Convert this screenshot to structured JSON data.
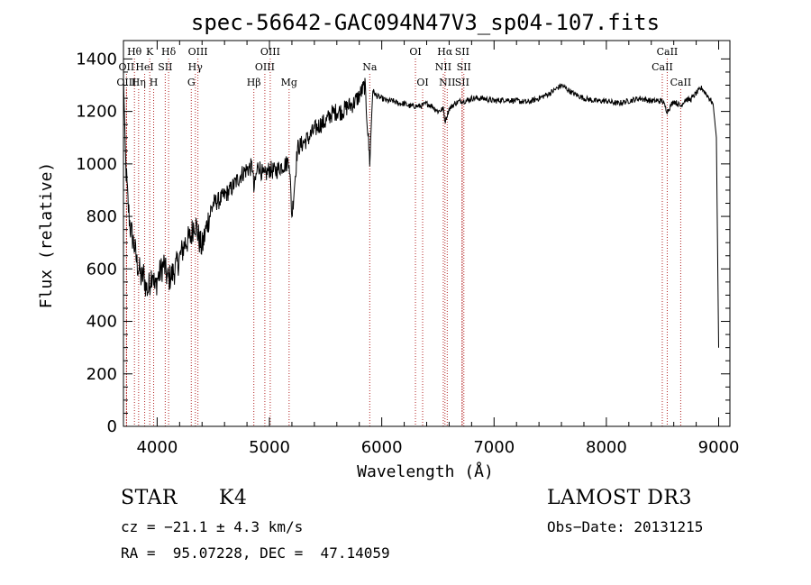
{
  "chart_data": {
    "type": "line",
    "title": "spec-56642-GAC094N47V3_sp04-107.fits",
    "xlabel": "Wavelength (Å)",
    "ylabel": "Flux (relative)",
    "xlim": [
      3700,
      9100
    ],
    "ylim": [
      0,
      1470
    ],
    "xticks": [
      4000,
      5000,
      6000,
      7000,
      8000,
      9000
    ],
    "yticks": [
      0,
      200,
      400,
      600,
      800,
      1000,
      1200,
      1400
    ],
    "x_tick_labels": [
      "4000",
      "5000",
      "6000",
      "7000",
      "8000",
      "9000"
    ],
    "y_tick_labels": [
      "0",
      "200",
      "400",
      "600",
      "800",
      "1000",
      "1200",
      "1400"
    ],
    "grid": false,
    "series": [
      {
        "name": "flux",
        "x": [
          3700,
          3720,
          3740,
          3760,
          3780,
          3800,
          3820,
          3840,
          3860,
          3880,
          3900,
          3920,
          3940,
          3960,
          3980,
          4000,
          4020,
          4040,
          4060,
          4080,
          4100,
          4150,
          4200,
          4250,
          4300,
          4330,
          4350,
          4380,
          4400,
          4450,
          4500,
          4550,
          4600,
          4650,
          4700,
          4750,
          4800,
          4850,
          4861,
          4900,
          4950,
          5000,
          5050,
          5100,
          5150,
          5175,
          5200,
          5250,
          5300,
          5350,
          5400,
          5450,
          5500,
          5550,
          5600,
          5650,
          5700,
          5750,
          5800,
          5850,
          5893,
          5920,
          5950,
          6000,
          6050,
          6100,
          6150,
          6200,
          6250,
          6300,
          6350,
          6400,
          6450,
          6500,
          6550,
          6563,
          6600,
          6650,
          6700,
          6750,
          6800,
          6900,
          7000,
          7100,
          7200,
          7300,
          7400,
          7500,
          7600,
          7700,
          7800,
          7900,
          8000,
          8100,
          8200,
          8300,
          8400,
          8500,
          8542,
          8600,
          8662,
          8700,
          8750,
          8800,
          8850,
          8900,
          8950,
          8980,
          9000
        ],
        "y": [
          1330,
          1000,
          850,
          760,
          720,
          680,
          620,
          600,
          560,
          580,
          530,
          520,
          560,
          600,
          520,
          560,
          580,
          600,
          620,
          580,
          560,
          590,
          640,
          700,
          720,
          780,
          760,
          700,
          680,
          780,
          850,
          860,
          880,
          900,
          930,
          960,
          980,
          990,
          900,
          1000,
          950,
          980,
          970,
          990,
          1000,
          1020,
          800,
          1060,
          1080,
          1100,
          1130,
          1150,
          1160,
          1190,
          1200,
          1200,
          1220,
          1230,
          1260,
          1300,
          1010,
          1280,
          1260,
          1250,
          1240,
          1240,
          1230,
          1230,
          1220,
          1220,
          1220,
          1230,
          1220,
          1200,
          1210,
          1160,
          1210,
          1230,
          1240,
          1240,
          1250,
          1250,
          1240,
          1245,
          1240,
          1235,
          1250,
          1270,
          1300,
          1270,
          1250,
          1240,
          1240,
          1230,
          1240,
          1250,
          1240,
          1240,
          1200,
          1240,
          1220,
          1245,
          1245,
          1270,
          1290,
          1260,
          1230,
          1100,
          300
        ]
      }
    ],
    "spectral_lines": [
      {
        "name": "Hθ",
        "wavelength": 3798,
        "row": 0
      },
      {
        "name": "OII",
        "wavelength": 3727,
        "row": 1
      },
      {
        "name": "OIII",
        "wavelength": 3727,
        "row": 2
      },
      {
        "name": "Hη",
        "wavelength": 3835,
        "row": 2
      },
      {
        "name": "K",
        "wavelength": 3934,
        "row": 0
      },
      {
        "name": "HeI",
        "wavelength": 3889,
        "row": 1
      },
      {
        "name": "H",
        "wavelength": 3969,
        "row": 2
      },
      {
        "name": "SII",
        "wavelength": 4072,
        "row": 1
      },
      {
        "name": "Hδ",
        "wavelength": 4102,
        "row": 0
      },
      {
        "name": "OIII",
        "wavelength": 4363,
        "row": 0
      },
      {
        "name": "Hγ",
        "wavelength": 4340,
        "row": 1
      },
      {
        "name": "G",
        "wavelength": 4304,
        "row": 2
      },
      {
        "name": "Hβ",
        "wavelength": 4861,
        "row": 2
      },
      {
        "name": "OIII",
        "wavelength": 5007,
        "row": 0
      },
      {
        "name": "OIII",
        "wavelength": 4959,
        "row": 1
      },
      {
        "name": "Mg",
        "wavelength": 5175,
        "row": 2
      },
      {
        "name": "Na",
        "wavelength": 5893,
        "row": 1
      },
      {
        "name": "OI",
        "wavelength": 6300,
        "row": 0
      },
      {
        "name": "OI",
        "wavelength": 6364,
        "row": 2
      },
      {
        "name": "Hα",
        "wavelength": 6563,
        "row": 0
      },
      {
        "name": "SII",
        "wavelength": 6716,
        "row": 0
      },
      {
        "name": "NII",
        "wavelength": 6548,
        "row": 1
      },
      {
        "name": "SII",
        "wavelength": 6731,
        "row": 1
      },
      {
        "name": "NII",
        "wavelength": 6583,
        "row": 2
      },
      {
        "name": "SII",
        "wavelength": 6716,
        "row": 2
      },
      {
        "name": "CaII",
        "wavelength": 8542,
        "row": 0
      },
      {
        "name": "CaII",
        "wavelength": 8498,
        "row": 1
      },
      {
        "name": "CaII",
        "wavelength": 8662,
        "row": 2
      }
    ],
    "line_marker_color": "#b22222"
  },
  "info": {
    "class_label": "STAR",
    "subclass": "K4",
    "survey": "LAMOST DR3",
    "cz": "cz = −21.1 ± 4.3 km/s",
    "obs_date": "Obs−Date: 20131215",
    "coords": "RA =  95.07228, DEC =  47.14059"
  }
}
